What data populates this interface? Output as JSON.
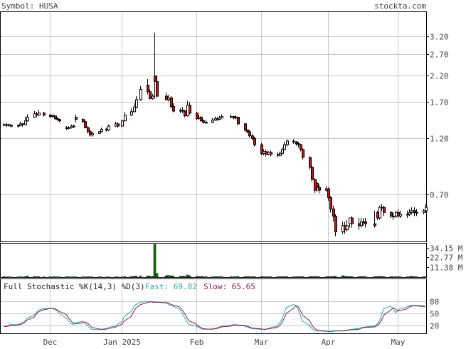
{
  "header": {
    "symbol_text": "Symbol: HUSA",
    "site_text": "stockta.com"
  },
  "colors": {
    "up_fill": "#ffffff",
    "down_fill": "#cc1111",
    "volume": "#0a7a0a",
    "fast_line": "#2aa7a7",
    "slow_line": "#8b1a4a",
    "grid": "#c8c8c8",
    "text": "#444444"
  },
  "chart_data": [
    {
      "type": "candlestick",
      "title": "",
      "scale": "log",
      "ylim": [
        0.45,
        4.0
      ],
      "y_ticks": [
        3.2,
        2.7,
        2.2,
        1.7,
        1.2,
        0.7
      ],
      "y_tick_labels": [
        "3.20",
        "2.70",
        "2.20",
        "1.70",
        "1.20",
        "0.70"
      ],
      "x_tick_labels": [
        "Dec",
        "Jan 2025",
        "Feb",
        "Mar",
        "Apr",
        "May"
      ],
      "x_tick_dates": [
        "2024-12-02",
        "2025-01-02",
        "2025-02-03",
        "2025-03-03",
        "2025-04-01",
        "2025-05-01"
      ],
      "grid": true,
      "dates": [
        "2024-11-12",
        "2024-11-13",
        "2024-11-14",
        "2024-11-15",
        "2024-11-18",
        "2024-11-19",
        "2024-11-20",
        "2024-11-21",
        "2024-11-22",
        "2024-11-25",
        "2024-11-26",
        "2024-11-27",
        "2024-11-29",
        "2024-12-02",
        "2024-12-03",
        "2024-12-04",
        "2024-12-05",
        "2024-12-06",
        "2024-12-09",
        "2024-12-10",
        "2024-12-11",
        "2024-12-12",
        "2024-12-13",
        "2024-12-16",
        "2024-12-17",
        "2024-12-18",
        "2024-12-19",
        "2024-12-20",
        "2024-12-23",
        "2024-12-24",
        "2024-12-26",
        "2024-12-27",
        "2024-12-30",
        "2024-12-31",
        "2025-01-02",
        "2025-01-03",
        "2025-01-06",
        "2025-01-07",
        "2025-01-08",
        "2025-01-10",
        "2025-01-13",
        "2025-01-14",
        "2025-01-15",
        "2025-01-16",
        "2025-01-17",
        "2025-01-21",
        "2025-01-22",
        "2025-01-23",
        "2025-01-24",
        "2025-01-27",
        "2025-01-28",
        "2025-01-29",
        "2025-01-30",
        "2025-01-31",
        "2025-02-03",
        "2025-02-04",
        "2025-02-05",
        "2025-02-06",
        "2025-02-07",
        "2025-02-10",
        "2025-02-11",
        "2025-02-12",
        "2025-02-13",
        "2025-02-14",
        "2025-02-18",
        "2025-02-19",
        "2025-02-20",
        "2025-02-21",
        "2025-02-24",
        "2025-02-25",
        "2025-02-26",
        "2025-02-27",
        "2025-02-28",
        "2025-03-03",
        "2025-03-04",
        "2025-03-05",
        "2025-03-06",
        "2025-03-07",
        "2025-03-10",
        "2025-03-11",
        "2025-03-12",
        "2025-03-13",
        "2025-03-14",
        "2025-03-17",
        "2025-03-18",
        "2025-03-19",
        "2025-03-20",
        "2025-03-21",
        "2025-03-24",
        "2025-03-25",
        "2025-03-26",
        "2025-03-27",
        "2025-03-28",
        "2025-03-31",
        "2025-04-01",
        "2025-04-02",
        "2025-04-03",
        "2025-04-04",
        "2025-04-07",
        "2025-04-08",
        "2025-04-09",
        "2025-04-10",
        "2025-04-11",
        "2025-04-14",
        "2025-04-15",
        "2025-04-16",
        "2025-04-17",
        "2025-04-21",
        "2025-04-22",
        "2025-04-23",
        "2025-04-24",
        "2025-04-25",
        "2025-04-28",
        "2025-04-29",
        "2025-04-30",
        "2025-05-01",
        "2025-05-02",
        "2025-05-05",
        "2025-05-06",
        "2025-05-07",
        "2025-05-08",
        "2025-05-09",
        "2025-05-12",
        "2025-05-13"
      ],
      "close": [
        1.37,
        1.37,
        1.36,
        1.35,
        1.36,
        1.38,
        1.37,
        1.42,
        1.47,
        1.52,
        1.5,
        1.53,
        1.5,
        1.48,
        1.49,
        1.45,
        1.44,
        1.42,
        1.33,
        1.33,
        1.35,
        1.34,
        1.44,
        1.41,
        1.33,
        1.28,
        1.24,
        1.26,
        1.28,
        1.31,
        1.3,
        1.35,
        1.38,
        1.35,
        1.42,
        1.5,
        1.55,
        1.62,
        1.74,
        1.92,
        1.88,
        1.76,
        1.8,
        2.07,
        1.8,
        1.74,
        1.77,
        1.63,
        1.56,
        1.57,
        1.56,
        1.49,
        1.65,
        1.53,
        1.45,
        1.47,
        1.42,
        1.4,
        1.4,
        1.43,
        1.45,
        1.44,
        1.46,
        1.48,
        1.48,
        1.46,
        1.47,
        1.38,
        1.3,
        1.28,
        1.23,
        1.2,
        1.13,
        1.04,
        1.06,
        1.03,
        1.05,
        1.03,
        1.02,
        1.04,
        1.08,
        1.13,
        1.17,
        1.16,
        1.14,
        1.13,
        1.08,
        1.0,
        0.91,
        0.81,
        0.73,
        0.75,
        0.73,
        0.74,
        0.68,
        0.61,
        0.57,
        0.49,
        0.52,
        0.5,
        0.52,
        0.56,
        0.53,
        0.52,
        0.54,
        0.54,
        0.53,
        0.52,
        0.56,
        0.62,
        0.62,
        0.59,
        0.57,
        0.57,
        0.59,
        0.57,
        0.58,
        0.58,
        0.59,
        0.6,
        0.59,
        0.59,
        0.6,
        0.62
      ],
      "open": [
        1.37,
        1.37,
        1.37,
        1.36,
        1.35,
        1.36,
        1.38,
        1.37,
        1.42,
        1.47,
        1.52,
        1.5,
        1.53,
        1.5,
        1.48,
        1.49,
        1.45,
        1.44,
        1.32,
        1.33,
        1.33,
        1.35,
        1.47,
        1.44,
        1.41,
        1.33,
        1.28,
        1.24,
        1.26,
        1.28,
        1.31,
        1.3,
        1.35,
        1.38,
        1.35,
        1.42,
        1.5,
        1.55,
        1.62,
        1.74,
        2.0,
        1.88,
        1.76,
        2.18,
        2.07,
        1.8,
        1.74,
        1.77,
        1.63,
        1.56,
        1.57,
        1.56,
        1.49,
        1.65,
        1.53,
        1.45,
        1.47,
        1.42,
        1.4,
        1.4,
        1.43,
        1.45,
        1.44,
        1.46,
        1.48,
        1.48,
        1.46,
        1.47,
        1.38,
        1.3,
        1.28,
        1.23,
        1.2,
        1.13,
        1.04,
        1.06,
        1.03,
        1.05,
        1.03,
        1.02,
        1.04,
        1.08,
        1.13,
        1.17,
        1.16,
        1.14,
        1.13,
        1.08,
        1.0,
        0.91,
        0.81,
        0.78,
        0.75,
        0.73,
        0.74,
        0.68,
        0.61,
        0.57,
        0.49,
        0.52,
        0.5,
        0.53,
        0.56,
        0.53,
        0.52,
        0.54,
        0.54,
        0.53,
        0.59,
        0.56,
        0.62,
        0.62,
        0.59,
        0.57,
        0.57,
        0.59,
        0.57,
        0.58,
        0.58,
        0.59,
        0.6,
        0.59,
        0.59,
        0.6
      ],
      "high": [
        1.39,
        1.39,
        1.38,
        1.37,
        1.37,
        1.41,
        1.39,
        1.48,
        1.51,
        1.56,
        1.55,
        1.58,
        1.55,
        1.52,
        1.52,
        1.5,
        1.47,
        1.45,
        1.35,
        1.35,
        1.37,
        1.37,
        1.51,
        1.46,
        1.43,
        1.35,
        1.3,
        1.28,
        1.29,
        1.33,
        1.33,
        1.37,
        1.41,
        1.4,
        1.44,
        1.55,
        1.6,
        1.68,
        1.8,
        1.98,
        2.12,
        1.92,
        1.84,
        3.3,
        2.2,
        1.86,
        1.82,
        1.8,
        1.68,
        1.6,
        1.62,
        1.58,
        1.72,
        1.7,
        1.55,
        1.5,
        1.49,
        1.44,
        1.43,
        1.46,
        1.48,
        1.47,
        1.49,
        1.51,
        1.51,
        1.49,
        1.5,
        1.48,
        1.39,
        1.31,
        1.3,
        1.25,
        1.22,
        1.15,
        1.08,
        1.08,
        1.06,
        1.07,
        1.05,
        1.06,
        1.1,
        1.16,
        1.19,
        1.19,
        1.17,
        1.16,
        1.14,
        1.09,
        1.01,
        0.92,
        0.82,
        0.79,
        0.77,
        0.76,
        0.75,
        0.69,
        0.63,
        0.58,
        0.54,
        0.54,
        0.55,
        0.56,
        0.57,
        0.56,
        0.56,
        0.56,
        0.56,
        0.6,
        0.6,
        0.63,
        0.64,
        0.63,
        0.6,
        0.59,
        0.6,
        0.61,
        0.6,
        0.6,
        0.61,
        0.62,
        0.62,
        0.61,
        0.61,
        0.64
      ],
      "low": [
        1.35,
        1.34,
        1.34,
        1.33,
        1.33,
        1.35,
        1.34,
        1.36,
        1.41,
        1.46,
        1.48,
        1.49,
        1.48,
        1.46,
        1.46,
        1.43,
        1.42,
        1.4,
        1.3,
        1.31,
        1.32,
        1.33,
        1.4,
        1.39,
        1.32,
        1.26,
        1.22,
        1.22,
        1.25,
        1.27,
        1.28,
        1.29,
        1.34,
        1.33,
        1.34,
        1.41,
        1.49,
        1.54,
        1.6,
        1.72,
        1.83,
        1.74,
        1.74,
        1.77,
        1.77,
        1.72,
        1.71,
        1.6,
        1.54,
        1.53,
        1.53,
        1.47,
        1.48,
        1.51,
        1.43,
        1.43,
        1.41,
        1.38,
        1.38,
        1.39,
        1.42,
        1.42,
        1.43,
        1.45,
        1.46,
        1.44,
        1.44,
        1.36,
        1.28,
        1.26,
        1.21,
        1.18,
        1.11,
        1.02,
        1.02,
        1.01,
        1.02,
        1.01,
        1.0,
        1.01,
        1.03,
        1.07,
        1.11,
        1.14,
        1.12,
        1.1,
        1.06,
        0.98,
        0.89,
        0.79,
        0.71,
        0.72,
        0.71,
        0.72,
        0.66,
        0.59,
        0.54,
        0.47,
        0.48,
        0.48,
        0.49,
        0.51,
        0.51,
        0.5,
        0.51,
        0.52,
        0.51,
        0.51,
        0.55,
        0.55,
        0.6,
        0.57,
        0.56,
        0.55,
        0.56,
        0.56,
        0.56,
        0.56,
        0.57,
        0.58,
        0.57,
        0.57,
        0.58,
        0.59
      ]
    },
    {
      "type": "bar",
      "title": "",
      "y_tick_labels": [
        "34.15 M",
        "22.77 M",
        "11.38 M"
      ],
      "y_ticks": [
        34.15,
        22.77,
        11.38
      ],
      "ylim": [
        0,
        38
      ],
      "volume_millions": [
        0.5,
        0.3,
        0.3,
        0.2,
        0.2,
        0.3,
        0.2,
        0.4,
        1.2,
        0.6,
        0.4,
        0.5,
        0.3,
        0.3,
        0.3,
        0.3,
        0.3,
        0.3,
        0.4,
        0.3,
        0.3,
        0.3,
        0.4,
        0.3,
        0.3,
        0.4,
        0.3,
        0.3,
        0.3,
        0.3,
        0.2,
        0.3,
        0.3,
        0.3,
        0.3,
        0.5,
        0.6,
        0.8,
        1.0,
        1.2,
        1.3,
        0.9,
        0.7,
        38.0,
        4.2,
        1.5,
        2.0,
        1.6,
        1.0,
        0.8,
        0.9,
        0.8,
        2.5,
        1.6,
        0.7,
        0.6,
        0.5,
        0.5,
        0.4,
        0.4,
        0.4,
        0.4,
        0.4,
        0.4,
        0.4,
        0.4,
        0.4,
        0.5,
        0.5,
        0.4,
        0.5,
        0.4,
        0.5,
        0.5,
        0.4,
        0.4,
        0.4,
        0.4,
        0.4,
        0.4,
        0.4,
        0.5,
        0.5,
        0.4,
        0.4,
        0.4,
        0.4,
        0.5,
        0.5,
        0.6,
        0.7,
        0.5,
        0.4,
        0.4,
        0.5,
        0.6,
        0.7,
        0.9,
        1.6,
        0.8,
        0.7,
        0.6,
        0.6,
        0.5,
        0.5,
        0.5,
        0.5,
        0.5,
        0.6,
        0.7,
        0.6,
        0.5,
        0.5,
        0.4,
        0.4,
        0.4,
        0.4,
        0.4,
        0.4,
        1.0,
        0.5,
        0.4,
        0.4,
        0.4
      ]
    },
    {
      "type": "line",
      "title": "Full Stochastic %K(14,3) %D(3)",
      "legend": [
        {
          "name": "Fast",
          "value_text": "Fast: 69.82"
        },
        {
          "name": "Slow",
          "value_text": "Slow: 65.65"
        }
      ],
      "ylim": [
        0,
        100
      ],
      "y_ticks": [
        80,
        50,
        20
      ],
      "y_tick_labels": [
        "80",
        "50",
        "20"
      ],
      "series": [
        {
          "name": "Fast",
          "values": [
            18,
            18,
            20,
            22,
            22,
            24,
            26,
            30,
            38,
            45,
            52,
            58,
            62,
            63,
            62,
            60,
            56,
            50,
            38,
            30,
            25,
            22,
            26,
            30,
            28,
            20,
            14,
            10,
            9,
            10,
            12,
            14,
            18,
            22,
            30,
            42,
            55,
            65,
            72,
            78,
            80,
            80,
            78,
            77,
            78,
            76,
            73,
            70,
            68,
            60,
            50,
            40,
            30,
            22,
            18,
            15,
            12,
            10,
            10,
            11,
            12,
            14,
            16,
            18,
            20,
            22,
            22,
            20,
            18,
            16,
            14,
            12,
            11,
            10,
            10,
            10,
            12,
            14,
            18,
            25,
            35,
            50,
            65,
            72,
            70,
            60,
            45,
            30,
            20,
            12,
            8,
            6,
            6,
            5,
            5,
            5,
            6,
            6,
            6,
            7,
            8,
            9,
            10,
            12,
            14,
            15,
            16,
            18,
            22,
            30,
            45,
            62,
            68,
            62,
            52,
            56,
            62,
            66,
            70,
            70,
            70,
            70,
            70,
            70
          ]
        },
        {
          "name": "Slow",
          "values": [
            17,
            17,
            18,
            20,
            21,
            22,
            24,
            27,
            33,
            40,
            48,
            54,
            59,
            62,
            63,
            62,
            59,
            55,
            47,
            39,
            31,
            26,
            24,
            26,
            28,
            26,
            21,
            15,
            11,
            10,
            10,
            12,
            15,
            18,
            23,
            31,
            42,
            54,
            63,
            72,
            77,
            79,
            79,
            78,
            78,
            77,
            76,
            73,
            71,
            66,
            59,
            50,
            40,
            31,
            23,
            18,
            15,
            12,
            11,
            10,
            11,
            12,
            14,
            16,
            18,
            20,
            21,
            21,
            20,
            18,
            16,
            14,
            13,
            11,
            10,
            10,
            11,
            12,
            15,
            19,
            26,
            37,
            50,
            62,
            69,
            67,
            58,
            45,
            32,
            21,
            13,
            9,
            7,
            6,
            5,
            5,
            5,
            6,
            6,
            6,
            7,
            8,
            9,
            10,
            12,
            14,
            15,
            16,
            19,
            24,
            32,
            46,
            58,
            64,
            61,
            57,
            57,
            61,
            66,
            68,
            69,
            69,
            67,
            66
          ]
        }
      ]
    }
  ]
}
